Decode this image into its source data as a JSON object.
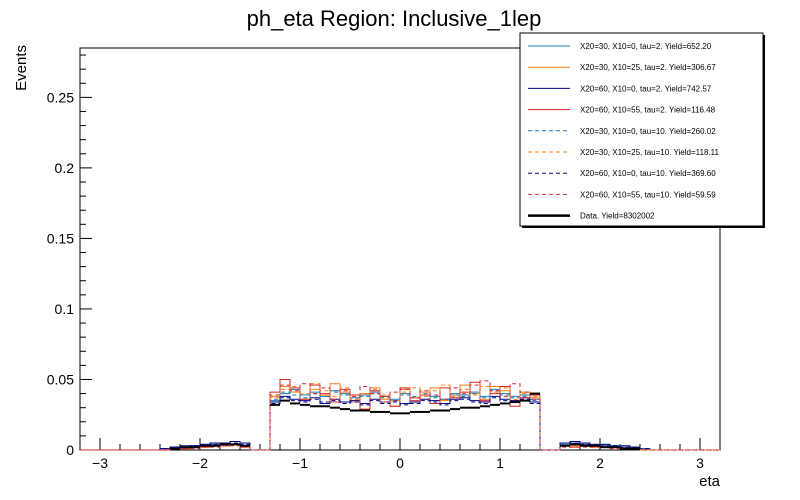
{
  "chart_data": {
    "type": "step",
    "title": "ph_eta Region: Inclusive_1lep",
    "xlabel": "eta",
    "ylabel": "Events",
    "xlim": [
      -3.2,
      3.2
    ],
    "ylim": [
      0,
      0.285
    ],
    "xticks": [
      -3,
      -2,
      -1,
      0,
      1,
      2,
      3
    ],
    "xtick_labels": [
      "−3",
      "−2",
      "−1",
      "0",
      "1",
      "2",
      "3"
    ],
    "yticks": [
      0,
      0.05,
      0.1,
      0.15,
      0.2,
      0.25
    ],
    "ytick_labels": [
      "0",
      "0.05",
      "0.1",
      "0.15",
      "0.2",
      "0.25"
    ],
    "grid": false,
    "legend_position": "top-right",
    "bin_edges": [
      -3.0,
      -2.9,
      -2.8,
      -2.7,
      -2.6,
      -2.5,
      -2.4,
      -2.3,
      -2.2,
      -2.1,
      -2.0,
      -1.9,
      -1.8,
      -1.7,
      -1.6,
      -1.5,
      -1.4,
      -1.3,
      -1.2,
      -1.1,
      -1.0,
      -0.9,
      -0.8,
      -0.7,
      -0.6,
      -0.5,
      -0.4,
      -0.3,
      -0.2,
      -0.1,
      0.0,
      0.1,
      0.2,
      0.3,
      0.4,
      0.5,
      0.6,
      0.7,
      0.8,
      0.9,
      1.0,
      1.1,
      1.2,
      1.3,
      1.4,
      1.5,
      1.6,
      1.7,
      1.8,
      1.9,
      2.0,
      2.1,
      2.2,
      2.3,
      2.4,
      2.5,
      2.6,
      2.7,
      2.8,
      2.9,
      3.0
    ],
    "series": [
      {
        "name": "X20=30, X10=0, tau=2. Yield=652.20",
        "color": "#1f77b4",
        "style": "solid",
        "values": [
          0,
          0,
          0,
          0,
          0,
          0,
          0.001,
          0.002,
          0.002,
          0.003,
          0.004,
          0.004,
          0.005,
          0.006,
          0.005,
          0,
          0,
          0.035,
          0.04,
          0.043,
          0.039,
          0.041,
          0.038,
          0.042,
          0.04,
          0.037,
          0.039,
          0.041,
          0.038,
          0.036,
          0.04,
          0.037,
          0.039,
          0.038,
          0.036,
          0.04,
          0.039,
          0.041,
          0.038,
          0.043,
          0.04,
          0.038,
          0.039,
          0.036,
          0,
          0,
          0.004,
          0.005,
          0.004,
          0.003,
          0.004,
          0.003,
          0.002,
          0.002,
          0.001,
          0,
          0,
          0,
          0,
          0
        ]
      },
      {
        "name": "X20=30, X10=25, tau=2. Yield=306.67",
        "color": "#ff7f0e",
        "style": "solid",
        "values": [
          0,
          0,
          0,
          0,
          0,
          0,
          0,
          0.001,
          0.001,
          0.002,
          0.003,
          0.003,
          0.003,
          0.004,
          0.003,
          0,
          0,
          0.038,
          0.045,
          0.041,
          0.036,
          0.043,
          0.039,
          0.047,
          0.041,
          0.034,
          0.04,
          0.044,
          0.036,
          0.031,
          0.043,
          0.037,
          0.041,
          0.044,
          0.035,
          0.039,
          0.046,
          0.04,
          0.036,
          0.045,
          0.042,
          0.035,
          0.041,
          0.037,
          0,
          0,
          0.003,
          0.003,
          0.004,
          0.002,
          0.003,
          0.002,
          0.002,
          0.001,
          0.001,
          0,
          0,
          0,
          0,
          0
        ]
      },
      {
        "name": "X20=60, X10=0, tau=2. Yield=742.57",
        "color": "#000080",
        "style": "solid",
        "values": [
          0,
          0,
          0,
          0,
          0,
          0,
          0.001,
          0.002,
          0.003,
          0.003,
          0.004,
          0.005,
          0.005,
          0.006,
          0.005,
          0,
          0,
          0.034,
          0.038,
          0.036,
          0.035,
          0.037,
          0.033,
          0.036,
          0.034,
          0.035,
          0.033,
          0.036,
          0.034,
          0.035,
          0.033,
          0.034,
          0.036,
          0.035,
          0.033,
          0.036,
          0.037,
          0.035,
          0.034,
          0.038,
          0.036,
          0.035,
          0.037,
          0.034,
          0,
          0,
          0.005,
          0.006,
          0.005,
          0.004,
          0.004,
          0.003,
          0.003,
          0.002,
          0.001,
          0,
          0,
          0,
          0,
          0
        ]
      },
      {
        "name": "X20=60, X10=55, tau=2. Yield=116.48",
        "color": "#d62728",
        "style": "solid",
        "values": [
          0,
          0,
          0,
          0,
          0,
          0,
          0,
          0.001,
          0.001,
          0.002,
          0.002,
          0.003,
          0.003,
          0.004,
          0.002,
          0,
          0,
          0.041,
          0.05,
          0.044,
          0.036,
          0.046,
          0.04,
          0.034,
          0.043,
          0.039,
          0.029,
          0.042,
          0.038,
          0.031,
          0.044,
          0.035,
          0.039,
          0.033,
          0.044,
          0.037,
          0.041,
          0.048,
          0.035,
          0.04,
          0.045,
          0.031,
          0.037,
          0.039,
          0,
          0,
          0.003,
          0.002,
          0.003,
          0.002,
          0.002,
          0.002,
          0.001,
          0.001,
          0,
          0,
          0,
          0,
          0,
          0
        ]
      },
      {
        "name": "X20=30, X10=0, tau=10. Yield=260.02",
        "color": "#1f77b4",
        "style": "dashed",
        "values": [
          0,
          0,
          0,
          0,
          0,
          0,
          0.001,
          0.002,
          0.002,
          0.003,
          0.003,
          0.004,
          0.005,
          0.005,
          0.004,
          0,
          0,
          0.036,
          0.041,
          0.039,
          0.037,
          0.04,
          0.038,
          0.041,
          0.039,
          0.036,
          0.038,
          0.04,
          0.037,
          0.035,
          0.039,
          0.038,
          0.04,
          0.037,
          0.036,
          0.039,
          0.038,
          0.04,
          0.037,
          0.042,
          0.039,
          0.037,
          0.038,
          0.035,
          0,
          0,
          0.004,
          0.004,
          0.004,
          0.003,
          0.003,
          0.003,
          0.002,
          0.001,
          0.001,
          0,
          0,
          0,
          0,
          0
        ]
      },
      {
        "name": "X20=30, X10=25, tau=10. Yield=118.11",
        "color": "#ff7f0e",
        "style": "dashed",
        "values": [
          0,
          0,
          0,
          0,
          0,
          0,
          0,
          0.001,
          0.001,
          0.002,
          0.002,
          0.003,
          0.003,
          0.004,
          0.003,
          0,
          0,
          0.037,
          0.043,
          0.045,
          0.04,
          0.047,
          0.042,
          0.038,
          0.044,
          0.036,
          0.04,
          0.043,
          0.039,
          0.035,
          0.041,
          0.044,
          0.038,
          0.042,
          0.046,
          0.038,
          0.043,
          0.039,
          0.045,
          0.041,
          0.044,
          0.036,
          0.04,
          0.038,
          0,
          0,
          0.003,
          0.003,
          0.003,
          0.002,
          0.002,
          0.002,
          0.001,
          0.001,
          0,
          0,
          0,
          0,
          0,
          0
        ]
      },
      {
        "name": "X20=60, X10=0, tau=10. Yield=369.60",
        "color": "#000080",
        "style": "dashed",
        "values": [
          0,
          0,
          0,
          0,
          0,
          0,
          0.001,
          0.002,
          0.002,
          0.003,
          0.004,
          0.004,
          0.005,
          0.005,
          0.004,
          0,
          0,
          0.033,
          0.037,
          0.035,
          0.034,
          0.036,
          0.034,
          0.035,
          0.033,
          0.034,
          0.032,
          0.035,
          0.033,
          0.034,
          0.032,
          0.033,
          0.035,
          0.034,
          0.032,
          0.035,
          0.036,
          0.034,
          0.033,
          0.037,
          0.035,
          0.034,
          0.036,
          0.033,
          0,
          0,
          0.005,
          0.005,
          0.004,
          0.004,
          0.003,
          0.003,
          0.002,
          0.002,
          0.001,
          0,
          0,
          0,
          0,
          0
        ]
      },
      {
        "name": "X20=60, X10=55, tau=10. Yield=59.59",
        "color": "#d62728",
        "style": "dashed",
        "values": [
          0,
          0,
          0,
          0,
          0,
          0,
          0,
          0.001,
          0.001,
          0.001,
          0.002,
          0.002,
          0.003,
          0.003,
          0.002,
          0,
          0,
          0.039,
          0.046,
          0.042,
          0.047,
          0.04,
          0.044,
          0.036,
          0.042,
          0.038,
          0.045,
          0.04,
          0.034,
          0.041,
          0.043,
          0.037,
          0.042,
          0.039,
          0.036,
          0.044,
          0.04,
          0.046,
          0.049,
          0.042,
          0.038,
          0.047,
          0.041,
          0.036,
          0,
          0,
          0.002,
          0.002,
          0.002,
          0.002,
          0.002,
          0.001,
          0.001,
          0.001,
          0,
          0,
          0,
          0,
          0,
          0
        ]
      },
      {
        "name": "Data. Yield=8302002",
        "color": "#000000",
        "style": "data",
        "values": [
          0,
          0,
          0,
          0,
          0,
          0,
          0,
          0.001,
          0.002,
          0.002,
          0.003,
          0.003,
          0.004,
          0.004,
          0.003,
          0,
          0,
          0.032,
          0.035,
          0.033,
          0.032,
          0.031,
          0.031,
          0.03,
          0.029,
          0.028,
          0.028,
          0.027,
          0.027,
          0.026,
          0.026,
          0.027,
          0.027,
          0.028,
          0.028,
          0.029,
          0.03,
          0.03,
          0.031,
          0.032,
          0.033,
          0.034,
          0.035,
          0.04,
          0,
          0,
          0.003,
          0.004,
          0.003,
          0.003,
          0.002,
          0.002,
          0.001,
          0.001,
          0,
          0,
          0,
          0,
          0,
          0
        ]
      }
    ]
  }
}
